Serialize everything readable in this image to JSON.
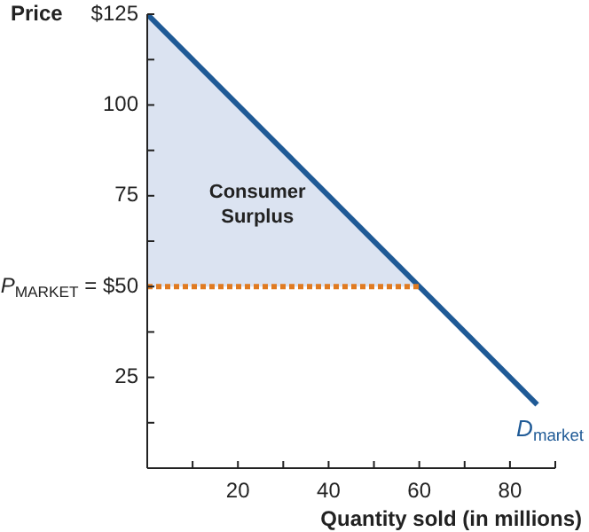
{
  "chart_data": {
    "type": "line",
    "ylabel": "Price",
    "xlabel": "Quantity sold (in millions)",
    "xlim": [
      0,
      90
    ],
    "ylim": [
      0,
      125
    ],
    "xticks": [
      {
        "value": 10,
        "label": null
      },
      20,
      {
        "value": 30,
        "label": null
      },
      40,
      {
        "value": 50,
        "label": null
      },
      60,
      {
        "value": 70,
        "label": null
      },
      80,
      {
        "value": 90,
        "label": null
      }
    ],
    "yticks": [
      {
        "value": 12.5,
        "label": null
      },
      25,
      {
        "value": 37.5,
        "label": null
      },
      {
        "value": 50,
        "label": "P$_{MARKET}$ = $50"
      },
      {
        "value": 62.5,
        "label": null
      },
      75,
      {
        "value": 87.5,
        "label": null
      },
      100,
      {
        "value": 112.5,
        "label": null
      },
      {
        "value": 125,
        "label": "$125"
      }
    ],
    "grid": false,
    "legend": false,
    "series": [
      {
        "color": "#e07b22",
        "x": [
          0,
          60
        ],
        "values": [
          50,
          50
        ],
        "line_style": "dotted"
      },
      {
        "type": "area",
        "color": "#dbe3f1",
        "x": [
          0,
          60
        ],
        "values": [
          125,
          50
        ]
      },
      {
        "name": "D$_{market}$",
        "color": "#1f5a96",
        "x": [
          0,
          86
        ],
        "values": [
          125,
          17.5
        ],
        "line_style": "solid"
      }
    ],
    "annotations": [
      "Consumer Surplus"
    ]
  }
}
